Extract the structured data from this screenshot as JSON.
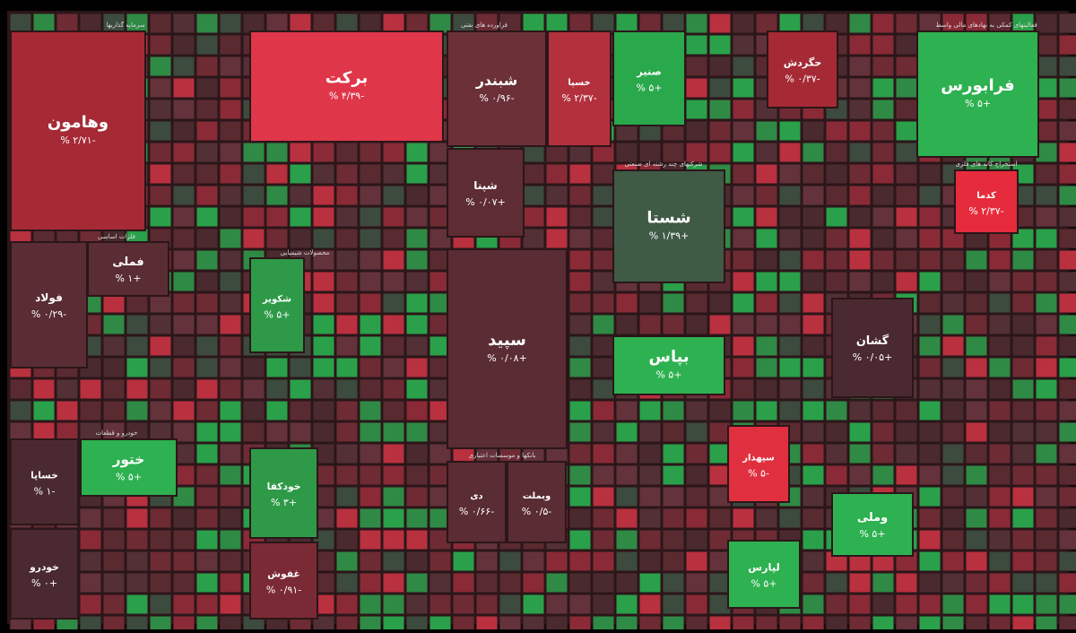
{
  "sectors": [
    "محصولات شیمیایی",
    "فلزات اساسی",
    "خودرو و قطعات",
    "بانکها و موسسات اعتباری",
    "سرمایه گذاریها",
    "شرکتهای چند رشته ای صنعتی",
    "فراورده های نفتی",
    "استخراج کانه های فلزی",
    "فعالیتهای کمکی به نهادهای مالی واسط"
  ],
  "tiles": [
    {
      "label": "وهامون",
      "change": "-۲/۷۱ %"
    },
    {
      "label": "برکت",
      "change": "-۴/۳۹ %"
    },
    {
      "label": "شبندر",
      "change": "-۰/۹۶ %"
    },
    {
      "label": "خسپا",
      "change": "-۲/۳۷ %"
    },
    {
      "label": "شپنا",
      "change": "+۰/۰۷ %"
    },
    {
      "label": "صنیر",
      "change": "+۵ %"
    },
    {
      "label": "حگردش",
      "change": "-۰/۳۷ %"
    },
    {
      "label": "فرابورس",
      "change": "+۵ %"
    },
    {
      "label": "شستا",
      "change": "+۱/۳۹ %"
    },
    {
      "label": "فولاد",
      "change": "-۰/۲۹ %"
    },
    {
      "label": "سپید",
      "change": "+۰/۰۸ %"
    },
    {
      "label": "بپاس",
      "change": "+۵ %"
    },
    {
      "label": "گشان",
      "change": "+۰/۰۵ %"
    },
    {
      "label": "خودکفا",
      "change": "+۳ %"
    },
    {
      "label": "ختور",
      "change": "+۵ %"
    },
    {
      "label": "خودرو",
      "change": "+۰ %"
    },
    {
      "label": "سپهدار",
      "change": "-۵ %"
    },
    {
      "label": "وملی",
      "change": "+۵ %"
    },
    {
      "label": "لپارس",
      "change": "+۵ %"
    },
    {
      "label": "غفوش",
      "change": "-۰/۹۱ %"
    },
    {
      "label": "کدما",
      "change": "-۲/۳۷ %"
    },
    {
      "label": "فملی",
      "change": "+۱ %"
    },
    {
      "label": "خساپا",
      "change": "-۱ %"
    },
    {
      "label": "شکویر",
      "change": "+۵ %"
    },
    {
      "label": "دی",
      "change": "-۰/۶۶ %"
    },
    {
      "label": "وبملت",
      "change": "-۰/۵ %"
    }
  ]
}
